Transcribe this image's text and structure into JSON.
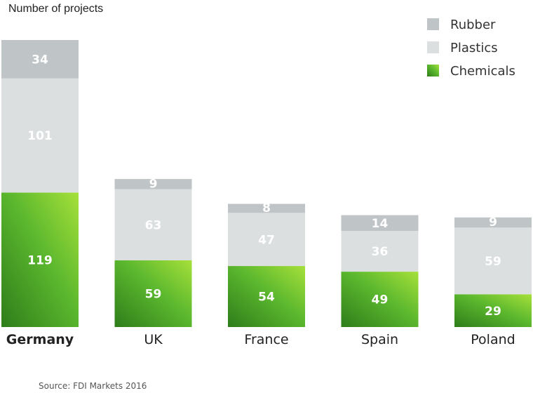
{
  "chart_data": {
    "type": "bar",
    "stacked": true,
    "title": "",
    "ylabel": "Number of projects",
    "categories": [
      "Germany",
      "UK",
      "France",
      "Spain",
      "Poland"
    ],
    "highlight_category": "Germany",
    "series": [
      {
        "name": "Chemicals",
        "values": [
          119,
          59,
          54,
          49,
          29
        ],
        "color": "#5cb82e"
      },
      {
        "name": "Plastics",
        "values": [
          101,
          63,
          47,
          36,
          59
        ],
        "color": "#dcdfe0"
      },
      {
        "name": "Rubber",
        "values": [
          34,
          9,
          8,
          14,
          9
        ],
        "color": "#bfc4c6"
      }
    ],
    "legend_order": [
      "Rubber",
      "Plastics",
      "Chemicals"
    ],
    "legend_position": "top-right",
    "grid": false,
    "ylim": [
      0,
      254
    ],
    "source": "Source: FDI Markets 2016"
  }
}
